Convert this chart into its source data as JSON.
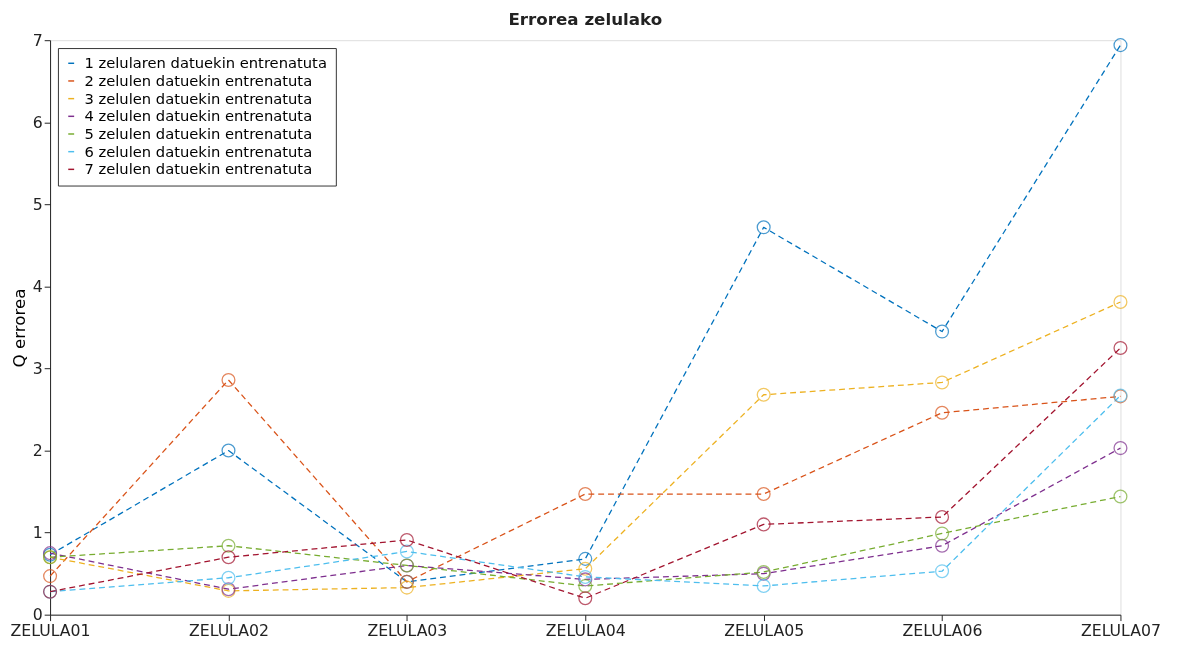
{
  "chart_data": {
    "type": "line",
    "title": "Errorea zelulako",
    "ylabel": "Q errorea",
    "categories": [
      "ZELULA01",
      "ZELULA02",
      "ZELULA03",
      "ZELULA04",
      "ZELULA05",
      "ZELULA06",
      "ZELULA07"
    ],
    "ylim": [
      0,
      7
    ],
    "yticks": [
      0,
      1,
      2,
      3,
      4,
      5,
      6,
      7
    ],
    "grid": false,
    "legend": "top left",
    "marker": "circle",
    "line_style": "dashed",
    "series": [
      {
        "name": "1 zelularen datuekin entrenatuta",
        "color": "#0072bd",
        "values": [
          0.73,
          2.0,
          0.4,
          0.68,
          4.72,
          3.45,
          6.94
        ]
      },
      {
        "name": "2 zelulen datuekin entrenatuta",
        "color": "#d95319",
        "values": [
          0.47,
          2.86,
          0.4,
          1.47,
          1.47,
          2.46,
          2.66
        ]
      },
      {
        "name": "3 zelulen datuekin entrenatuta",
        "color": "#edb120",
        "values": [
          0.7,
          0.29,
          0.33,
          0.56,
          2.68,
          2.83,
          3.81
        ]
      },
      {
        "name": "4 zelulen datuekin entrenatuta",
        "color": "#7e2f8e",
        "values": [
          0.75,
          0.31,
          0.6,
          0.43,
          0.5,
          0.84,
          2.03
        ]
      },
      {
        "name": "5 zelulen datuekin entrenatuta",
        "color": "#77ac30",
        "values": [
          0.7,
          0.84,
          0.6,
          0.35,
          0.52,
          0.99,
          1.44
        ]
      },
      {
        "name": "6 zelulen datuekin entrenatuta",
        "color": "#4dbeee",
        "values": [
          0.28,
          0.45,
          0.77,
          0.46,
          0.35,
          0.53,
          2.67
        ]
      },
      {
        "name": "7 zelulen datuekin entrenatuta",
        "color": "#a2142f",
        "values": [
          0.28,
          0.7,
          0.91,
          0.2,
          1.1,
          1.19,
          3.25
        ]
      }
    ]
  }
}
